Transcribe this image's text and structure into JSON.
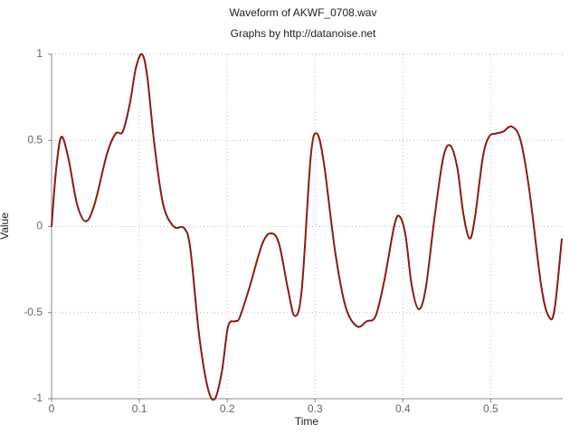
{
  "chart_data": {
    "type": "line",
    "title": "Waveform of AKWF_0708.wav",
    "subtitle": "Graphs by http://datanoise.net",
    "x_label": "Time",
    "y_label": "Value",
    "xlim": [
      0,
      0.582
    ],
    "ylim": [
      -1,
      1
    ],
    "xticks": [
      0,
      0.1,
      0.2,
      0.3,
      0.4,
      0.5
    ],
    "yticks": [
      -1,
      -0.5,
      0,
      0.5,
      1
    ],
    "grid": true,
    "x": [
      0,
      0.005,
      0.011,
      0.019,
      0.029,
      0.039,
      0.049,
      0.063,
      0.073,
      0.081,
      0.089,
      0.096,
      0.103,
      0.109,
      0.117,
      0.127,
      0.139,
      0.151,
      0.158,
      0.168,
      0.178,
      0.186,
      0.194,
      0.201,
      0.209,
      0.214,
      0.225,
      0.24,
      0.25,
      0.259,
      0.269,
      0.277,
      0.285,
      0.295,
      0.302,
      0.31,
      0.323,
      0.335,
      0.348,
      0.359,
      0.369,
      0.379,
      0.39,
      0.396,
      0.403,
      0.41,
      0.418,
      0.426,
      0.436,
      0.446,
      0.454,
      0.462,
      0.469,
      0.476,
      0.482,
      0.491,
      0.498,
      0.506,
      0.514,
      0.524,
      0.534,
      0.544,
      0.558,
      0.567,
      0.573,
      0.581
    ],
    "series": [
      {
        "color": "#8b1a10",
        "values": [
          0,
          0.32,
          0.52,
          0.4,
          0.13,
          0.03,
          0.13,
          0.42,
          0.54,
          0.55,
          0.71,
          0.92,
          1.0,
          0.87,
          0.48,
          0.13,
          0.0,
          -0.01,
          -0.13,
          -0.63,
          -0.94,
          -1.0,
          -0.84,
          -0.58,
          -0.55,
          -0.53,
          -0.36,
          -0.1,
          -0.04,
          -0.1,
          -0.36,
          -0.52,
          -0.36,
          0.4,
          0.54,
          0.37,
          -0.15,
          -0.47,
          -0.58,
          -0.55,
          -0.52,
          -0.31,
          0.0,
          0.06,
          -0.05,
          -0.34,
          -0.48,
          -0.36,
          0.05,
          0.4,
          0.47,
          0.34,
          0.07,
          -0.07,
          0.05,
          0.4,
          0.52,
          0.54,
          0.55,
          0.58,
          0.5,
          0.21,
          -0.36,
          -0.53,
          -0.47,
          -0.07
        ]
      }
    ]
  }
}
